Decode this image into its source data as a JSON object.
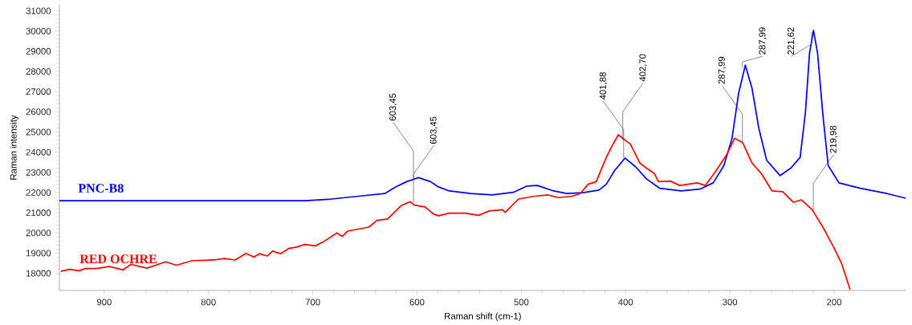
{
  "chart_data": {
    "type": "line",
    "xlabel": "Raman shift (cm-1)",
    "ylabel": "Raman intensity",
    "xlim": [
      943,
      131
    ],
    "ylim": [
      17150,
      31300
    ],
    "xticks": [
      900,
      800,
      700,
      600,
      500,
      400,
      300,
      200
    ],
    "yticks": [
      18000,
      19000,
      20000,
      21000,
      22000,
      23000,
      24000,
      25000,
      26000,
      27000,
      28000,
      29000,
      30000,
      31000
    ],
    "series": [
      {
        "name": "PNC-B8",
        "color": "#0000ff",
        "x": [
          943,
          707.7,
          682,
          656,
          631,
          620.5,
          610,
          598.7,
          587,
          579.5,
          569,
          548.7,
          528,
          507.7,
          494.9,
          484.6,
          469,
          456.4,
          441,
          425.6,
          418.5,
          410.8,
          400.6,
          390.3,
          380,
          367.2,
          346.7,
          328.8,
          316,
          305.7,
          298,
          291.6,
          285.2,
          278.8,
          272.3,
          264.7,
          251.8,
          241.6,
          232.6,
          227.5,
          223.6,
          219.8,
          215.9,
          210.8,
          205.7,
          195.4,
          174.9,
          149.3,
          131.3
        ],
        "values": [
          21600,
          21600,
          21680,
          21820,
          21950,
          22280,
          22540,
          22740,
          22540,
          22280,
          22080,
          21950,
          21880,
          22010,
          22320,
          22350,
          22080,
          21950,
          21990,
          22120,
          22410,
          23070,
          23710,
          23270,
          22680,
          22210,
          22080,
          22170,
          22480,
          23340,
          24670,
          26920,
          28310,
          27180,
          25200,
          23600,
          22840,
          23210,
          23740,
          25990,
          28910,
          30030,
          28910,
          25860,
          23340,
          22480,
          22210,
          21950,
          21720
        ]
      },
      {
        "name": "RED OCHRE",
        "color": "#ff0000",
        "x": [
          941.5,
          933.3,
          924.4,
          917.9,
          907.7,
          894.9,
          882,
          874.4,
          859,
          841,
          830.8,
          815.4,
          794.9,
          784.6,
          774.4,
          764.1,
          756.4,
          751.3,
          743.6,
          738.5,
          730.8,
          723.1,
          715.4,
          707.7,
          697.4,
          689.8,
          676.9,
          671.8,
          666.7,
          646.2,
          638.5,
          628.2,
          615.4,
          606.4,
          602.6,
          592.3,
          584.6,
          579.5,
          569.2,
          553.8,
          541,
          530.8,
          518,
          515.4,
          502.6,
          494.9,
          487.2,
          474.4,
          464.1,
          451.3,
          443.6,
          435.9,
          428.2,
          418.5,
          413.4,
          407,
          395.4,
          386.4,
          380,
          372.3,
          368.5,
          357,
          348,
          331.3,
          323.6,
          313.4,
          303.1,
          295.4,
          287.7,
          278.8,
          269.8,
          259.5,
          249.3,
          239,
          231.3,
          221,
          210.8,
          200.5,
          192.9,
          184.7
        ],
        "values": [
          18100,
          18200,
          18130,
          18240,
          18240,
          18340,
          18170,
          18440,
          18260,
          18570,
          18400,
          18630,
          18660,
          18730,
          18660,
          18990,
          18810,
          18970,
          18860,
          19100,
          18970,
          19230,
          19300,
          19430,
          19360,
          19560,
          20000,
          19830,
          20090,
          20290,
          20620,
          20690,
          21350,
          21550,
          21380,
          21290,
          20950,
          20850,
          20980,
          20980,
          20870,
          21090,
          21150,
          21020,
          21680,
          21750,
          21820,
          21880,
          21750,
          21820,
          21950,
          22410,
          22540,
          23740,
          24270,
          24860,
          24400,
          23470,
          23210,
          22940,
          22540,
          22570,
          22350,
          22480,
          22350,
          23070,
          23870,
          24690,
          24470,
          23470,
          22940,
          22080,
          22040,
          21520,
          21640,
          21150,
          20290,
          19300,
          18500,
          17200
        ]
      }
    ],
    "annotations": [
      {
        "text": "603,45",
        "x": 603.45,
        "y": 22650
      },
      {
        "text": "603,45",
        "x": 603.45,
        "y": 21500
      },
      {
        "text": "401,88",
        "x": 401.88,
        "y": 23700
      },
      {
        "text": "402,70",
        "x": 402.7,
        "y": 24600
      },
      {
        "text": "287,99",
        "x": 287.99,
        "y": 24470
      },
      {
        "text": "287,99",
        "x": 287.99,
        "y": 28200
      },
      {
        "text": "221,62",
        "x": 221.62,
        "y": 29950
      },
      {
        "text": "219,98",
        "x": 219.98,
        "y": 21050
      }
    ]
  }
}
